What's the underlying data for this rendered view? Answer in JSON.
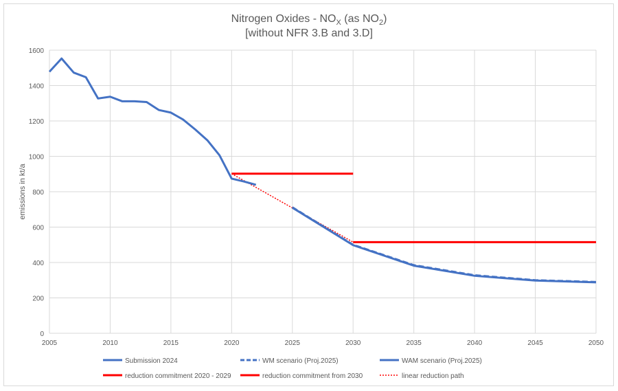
{
  "chart_data": {
    "type": "line",
    "title_main": "Nitrogen Oxides - NO",
    "title_sub_x": "X",
    "title_mid": " (as NO",
    "title_sub_2": "2",
    "title_end": ")",
    "title_line2": "[without NFR 3.B and 3.D]",
    "xlabel": "",
    "ylabel": "emissions in kt/a",
    "xlim": [
      2005,
      2050
    ],
    "ylim": [
      0,
      1600
    ],
    "xticks": [
      "2005",
      "2010",
      "2015",
      "2020",
      "2025",
      "2030",
      "2035",
      "2040",
      "2045",
      "2050"
    ],
    "yticks": [
      "0",
      "200",
      "400",
      "600",
      "800",
      "1000",
      "1200",
      "1400",
      "1600"
    ],
    "grid": true,
    "legend_position": "bottom",
    "series": [
      {
        "name": "Submission 2024",
        "color": "#4472C4",
        "style": "solid",
        "x": [
          2005,
          2006,
          2007,
          2008,
          2009,
          2010,
          2011,
          2012,
          2013,
          2014,
          2015,
          2016,
          2017,
          2018,
          2019,
          2020,
          2021,
          2022
        ],
        "y": [
          1478,
          1553,
          1473,
          1447,
          1327,
          1337,
          1311,
          1311,
          1307,
          1262,
          1247,
          1208,
          1152,
          1091,
          1006,
          874,
          858,
          839
        ]
      },
      {
        "name": "WM scenario (Proj.2025)",
        "color": "#4472C4",
        "style": "dashed",
        "x": [
          2025,
          2030,
          2035,
          2040,
          2045,
          2050
        ],
        "y": [
          712,
          500,
          385,
          328,
          300,
          290
        ]
      },
      {
        "name": "WAM scenario (Proj.2025)",
        "color": "#4472C4",
        "style": "solid",
        "x": [
          2025,
          2030,
          2035,
          2040,
          2045,
          2050
        ],
        "y": [
          710,
          498,
          382,
          325,
          298,
          288
        ]
      },
      {
        "name": "reduction commitment 2020 - 2029",
        "color": "#FF0000",
        "style": "solid",
        "x": [
          2020,
          2030
        ],
        "y": [
          902,
          902
        ]
      },
      {
        "name": "reduction commitment from 2030",
        "color": "#FF0000",
        "style": "solid",
        "x": [
          2030,
          2050
        ],
        "y": [
          515,
          515
        ]
      },
      {
        "name": "linear reduction path",
        "color": "#FF0000",
        "style": "dotted",
        "x": [
          2020,
          2030
        ],
        "y": [
          902,
          515
        ]
      }
    ]
  }
}
